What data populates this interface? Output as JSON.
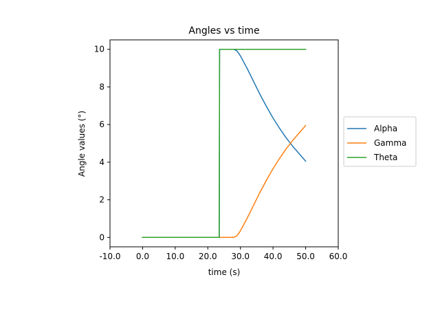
{
  "chart_data": {
    "type": "line",
    "title": "Angles vs time",
    "xlabel": "time (s)",
    "ylabel": "Angle values (°)",
    "xlim": [
      -10,
      60
    ],
    "ylim": [
      -0.5,
      10.5
    ],
    "xticks": [
      -10,
      0,
      10,
      20,
      30,
      40,
      50,
      60
    ],
    "xtick_labels": [
      "-10.0",
      "0.0",
      "10.0",
      "20.0",
      "30.0",
      "40.0",
      "50.0",
      "60.0"
    ],
    "yticks": [
      0,
      2,
      4,
      6,
      8,
      10
    ],
    "ytick_labels": [
      "0",
      "2",
      "4",
      "6",
      "8",
      "10"
    ],
    "grid": false,
    "legend_position": "outside-right",
    "series": [
      {
        "name": "Alpha",
        "color": "#1f77b4",
        "x": [
          0,
          23.5,
          23.6,
          27,
          28,
          29,
          30,
          32,
          34,
          36,
          38,
          40,
          42,
          44,
          46,
          48,
          50
        ],
        "y": [
          0,
          0,
          10,
          10,
          10,
          9.9,
          9.65,
          9.0,
          8.3,
          7.6,
          6.95,
          6.35,
          5.8,
          5.3,
          4.85,
          4.45,
          4.05
        ]
      },
      {
        "name": "Gamma",
        "color": "#ff7f0e",
        "x": [
          0,
          28,
          29,
          30,
          32,
          34,
          36,
          38,
          40,
          42,
          44,
          46,
          48,
          50
        ],
        "y": [
          0,
          0,
          0.1,
          0.35,
          1.0,
          1.7,
          2.4,
          3.05,
          3.65,
          4.2,
          4.7,
          5.15,
          5.55,
          5.95
        ]
      },
      {
        "name": "Theta",
        "color": "#2ca02c",
        "x": [
          0,
          23.5,
          23.6,
          50
        ],
        "y": [
          0,
          0,
          10,
          10
        ]
      }
    ]
  }
}
